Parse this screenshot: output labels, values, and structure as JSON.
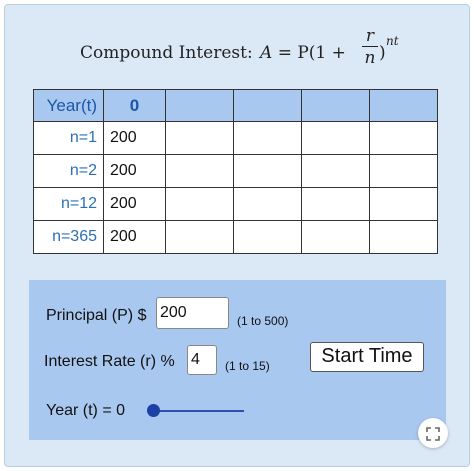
{
  "formula": {
    "label": "Compound Interest:",
    "lhs": "A",
    "eq": "= P(1 +",
    "frac_num": "r",
    "frac_den": "n",
    "close": ")",
    "exponent": "nt"
  },
  "table": {
    "header_label": "Year(t)",
    "header_value": "0",
    "rows": [
      {
        "label": "n=1",
        "value": "200"
      },
      {
        "label": "n=2",
        "value": "200"
      },
      {
        "label": "n=12",
        "value": "200"
      },
      {
        "label": "n=365",
        "value": "200"
      }
    ]
  },
  "controls": {
    "principal_label": "Principal (P) $",
    "principal_value": "200",
    "principal_hint": "(1 to 500)",
    "rate_label": "Interest Rate (r) %",
    "rate_value": "4",
    "rate_hint": "(1 to 15)",
    "start_button": "Start Time",
    "year_label": "Year (t) = 0",
    "year_slider_level": 0
  },
  "icons": {
    "expand": "expand-icon"
  },
  "colors": {
    "background": "#dbe9f7",
    "panel": "#a9c8ef",
    "label_blue": "#2d6fb6",
    "slider": "#1d3fa8"
  }
}
